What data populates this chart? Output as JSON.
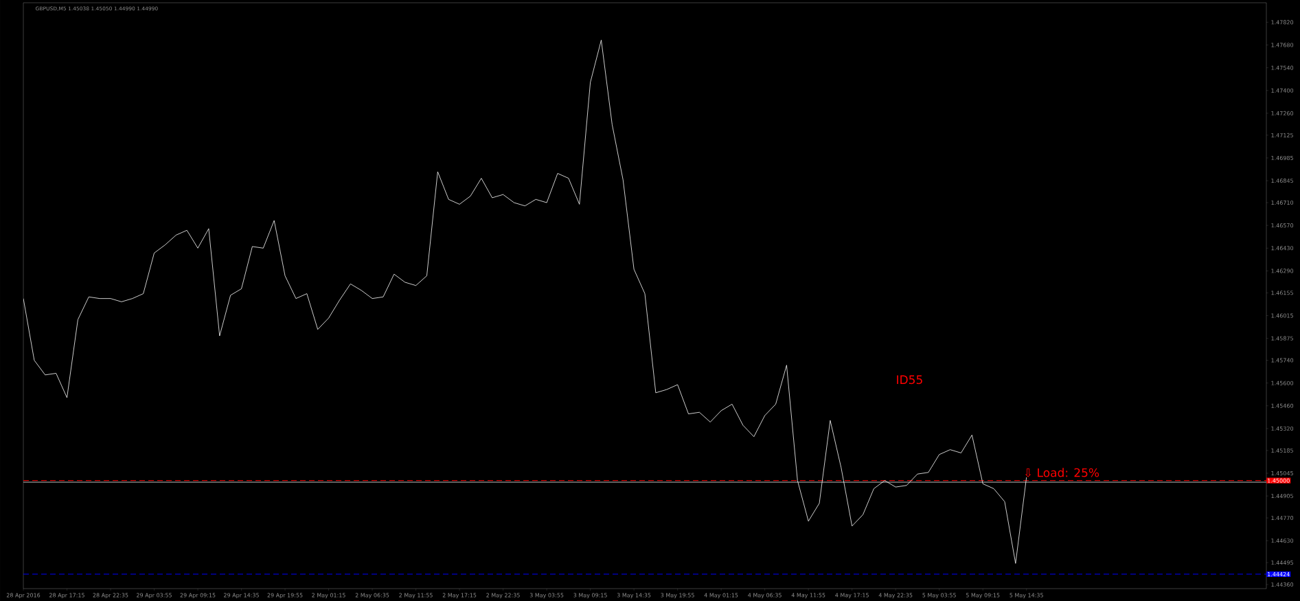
{
  "chart_data": {
    "type": "line",
    "title": "GBPUSD,M5  1.45038 1.45050 1.44990 1.44990",
    "annotations": [
      "ID55",
      {
        "text": "⇩ Load: 25%",
        "y": 1.4502
      }
    ],
    "categories": [
      "28 Apr 2016",
      null,
      null,
      null,
      "28 Apr 17:15",
      null,
      null,
      null,
      "28 Apr 22:35",
      null,
      null,
      null,
      "29 Apr 03:55",
      null,
      null,
      null,
      "29 Apr 09:15",
      null,
      null,
      null,
      "29 Apr 14:35",
      null,
      null,
      null,
      "29 Apr 19:55",
      null,
      null,
      null,
      "2 May 01:15",
      null,
      null,
      null,
      "2 May 06:35",
      null,
      null,
      null,
      "2 May 11:55",
      null,
      null,
      null,
      "2 May 17:15",
      null,
      null,
      null,
      "2 May 22:35",
      null,
      null,
      null,
      "3 May 03:55",
      null,
      null,
      null,
      "3 May 09:15",
      null,
      null,
      null,
      "3 May 14:35",
      null,
      null,
      null,
      "3 May 19:55",
      null,
      null,
      null,
      "4 May 01:15",
      null,
      null,
      null,
      "4 May 06:35",
      null,
      null,
      null,
      "4 May 11:55",
      null,
      null,
      null,
      "4 May 17:15",
      null,
      null,
      null,
      "4 May 22:35",
      null,
      null,
      null,
      "5 May 03:55",
      null,
      null,
      null,
      "5 May 09:15",
      null,
      null,
      null,
      "5 May 14:35"
    ],
    "series": [
      {
        "color": "#ffffff",
        "values": [
          1.4612,
          1.4574,
          1.4565,
          1.4566,
          1.4551,
          1.4599,
          1.4613,
          1.4612,
          1.4612,
          1.461,
          1.4612,
          1.4615,
          1.464,
          1.4645,
          1.4651,
          1.4654,
          1.4643,
          1.4655,
          1.4589,
          1.4614,
          1.4618,
          1.4644,
          1.4643,
          1.466,
          1.4626,
          1.4612,
          1.4615,
          1.4593,
          1.46,
          1.4611,
          1.4621,
          1.4617,
          1.4612,
          1.4613,
          1.4627,
          1.4622,
          1.462,
          1.4626,
          1.469,
          1.4673,
          1.467,
          1.4675,
          1.4686,
          1.4674,
          1.4676,
          1.4671,
          1.4669,
          1.4673,
          1.4671,
          1.4689,
          1.4686,
          1.467,
          1.4745,
          1.4771,
          1.4719,
          1.4685,
          1.463,
          1.4615,
          1.4554,
          1.4556,
          1.4559,
          1.4541,
          1.4542,
          1.4536,
          1.4543,
          1.4547,
          1.4534,
          1.4527,
          1.454,
          1.4547,
          1.4571,
          1.45,
          1.4475,
          1.4486,
          1.4537,
          1.4508,
          1.4472,
          1.4479,
          1.4495,
          1.45,
          1.4496,
          1.4497,
          1.4504,
          1.4505,
          1.4516,
          1.4519,
          1.4517,
          1.4528,
          1.4498,
          1.4495,
          1.4487,
          1.4449,
          1.4502
        ]
      }
    ],
    "ylim": [
      1.44335,
      1.4794
    ],
    "yticks": [
      {
        "value": 1.4782,
        "label": "1.47820"
      },
      {
        "value": 1.4768,
        "label": "1.47680"
      },
      {
        "value": 1.4754,
        "label": "1.47540"
      },
      {
        "value": 1.474,
        "label": "1.47400"
      },
      {
        "value": 1.4726,
        "label": "1.47260"
      },
      {
        "value": 1.47125,
        "label": "1.47125"
      },
      {
        "value": 1.46985,
        "label": "1.46985"
      },
      {
        "value": 1.46845,
        "label": "1.46845"
      },
      {
        "value": 1.4671,
        "label": "1.46710"
      },
      {
        "value": 1.4657,
        "label": "1.46570"
      },
      {
        "value": 1.4643,
        "label": "1.46430"
      },
      {
        "value": 1.4629,
        "label": "1.46290"
      },
      {
        "value": 1.46155,
        "label": "1.46155"
      },
      {
        "value": 1.46015,
        "label": "1.46015"
      },
      {
        "value": 1.45875,
        "label": "1.45875"
      },
      {
        "value": 1.4574,
        "label": "1.45740"
      },
      {
        "value": 1.456,
        "label": "1.45600"
      },
      {
        "value": 1.4546,
        "label": "1.45460"
      },
      {
        "value": 1.4532,
        "label": "1.45320"
      },
      {
        "value": 1.45185,
        "label": "1.45185"
      },
      {
        "value": 1.45045,
        "label": "1.45045"
      },
      {
        "value": 1.44905,
        "label": "1.44905"
      },
      {
        "value": 1.4477,
        "label": "1.44770"
      },
      {
        "value": 1.4463,
        "label": "1.44630"
      },
      {
        "value": 1.44495,
        "label": "1.44495"
      },
      {
        "value": 1.4436,
        "label": "1.44360"
      }
    ],
    "ref_lines": [
      {
        "axis": "y",
        "value": 1.45,
        "label": "1.45000",
        "color": "#ff0000",
        "line_style": "dashed"
      },
      {
        "axis": "y",
        "value": 1.4499,
        "color": "#c0c0c0",
        "line_style": "solid"
      },
      {
        "axis": "y",
        "value": 1.44424,
        "label": "1.44424",
        "color": "#0000ff",
        "line_style": "dashed"
      }
    ]
  }
}
